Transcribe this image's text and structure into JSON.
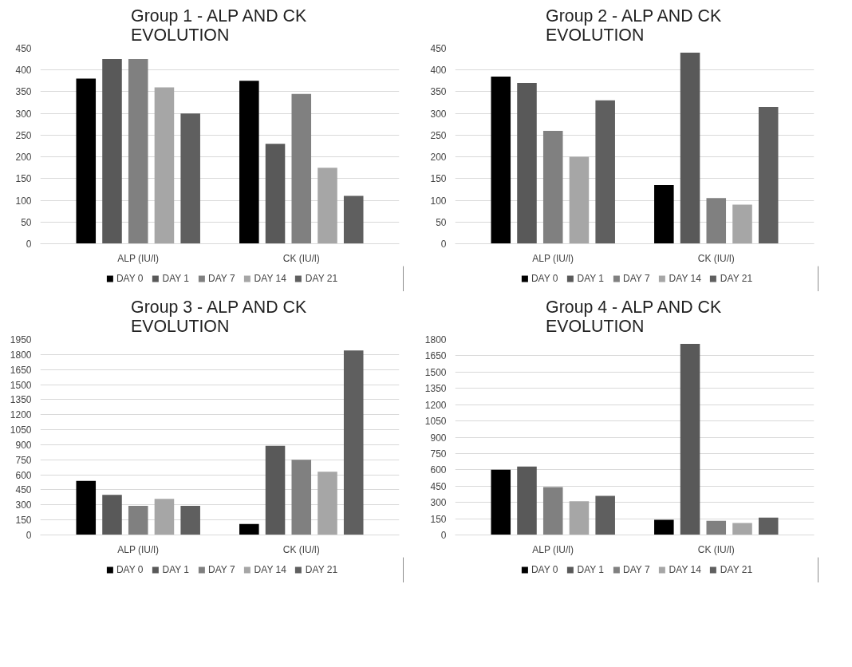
{
  "chart_data": [
    {
      "type": "bar",
      "title": "Group 1 - ALP AND CK EVOLUTION",
      "categories": [
        "ALP (IU/l)",
        "CK (IU/l)"
      ],
      "ylim": [
        0,
        450
      ],
      "yticks": [
        0,
        50,
        100,
        150,
        200,
        250,
        300,
        350,
        400,
        450
      ],
      "grid": "y",
      "legend": "bottom",
      "series": [
        {
          "name": "DAY 0",
          "color": "#000000",
          "values": [
            380,
            375
          ]
        },
        {
          "name": "DAY 1",
          "color": "#595959",
          "values": [
            425,
            230
          ]
        },
        {
          "name": "DAY 7",
          "color": "#808080",
          "values": [
            425,
            345
          ]
        },
        {
          "name": "DAY 14",
          "color": "#a6a6a6",
          "values": [
            360,
            175
          ]
        },
        {
          "name": "DAY 21",
          "color": "#5f5f5f",
          "values": [
            300,
            110
          ]
        }
      ]
    },
    {
      "type": "bar",
      "title": "Group 2 - ALP AND CK EVOLUTION",
      "categories": [
        "ALP (IU/l)",
        "CK (IU/l)"
      ],
      "ylim": [
        0,
        450
      ],
      "yticks": [
        0,
        50,
        100,
        150,
        200,
        250,
        300,
        350,
        400,
        450
      ],
      "grid": "y",
      "legend": "bottom",
      "series": [
        {
          "name": "DAY 0",
          "color": "#000000",
          "values": [
            385,
            135
          ]
        },
        {
          "name": "DAY 1",
          "color": "#595959",
          "values": [
            370,
            440
          ]
        },
        {
          "name": "DAY 7",
          "color": "#808080",
          "values": [
            260,
            105
          ]
        },
        {
          "name": "DAY 14",
          "color": "#a6a6a6",
          "values": [
            200,
            90
          ]
        },
        {
          "name": "DAY 21",
          "color": "#5f5f5f",
          "values": [
            330,
            315
          ]
        }
      ]
    },
    {
      "type": "bar",
      "title": "Group 3 - ALP AND CK EVOLUTION",
      "categories": [
        "ALP (IU/l)",
        "CK (IU/l)"
      ],
      "ylim": [
        0,
        1950
      ],
      "yticks": [
        0,
        150,
        300,
        450,
        600,
        750,
        900,
        1050,
        1200,
        1350,
        1500,
        1650,
        1800,
        1950
      ],
      "grid": "y",
      "legend": "bottom",
      "series": [
        {
          "name": "DAY 0",
          "color": "#000000",
          "values": [
            540,
            110
          ]
        },
        {
          "name": "DAY 1",
          "color": "#595959",
          "values": [
            400,
            890
          ]
        },
        {
          "name": "DAY 7",
          "color": "#808080",
          "values": [
            290,
            750
          ]
        },
        {
          "name": "DAY 14",
          "color": "#a6a6a6",
          "values": [
            360,
            630
          ]
        },
        {
          "name": "DAY 21",
          "color": "#5f5f5f",
          "values": [
            290,
            1840
          ]
        }
      ]
    },
    {
      "type": "bar",
      "title": "Group 4 - ALP AND CK EVOLUTION",
      "categories": [
        "ALP (IU/l)",
        "CK (IU/l)"
      ],
      "ylim": [
        0,
        1800
      ],
      "yticks": [
        0,
        150,
        300,
        450,
        600,
        750,
        900,
        1050,
        1200,
        1350,
        1500,
        1650,
        1800
      ],
      "grid": "y",
      "legend": "bottom",
      "series": [
        {
          "name": "DAY 0",
          "color": "#000000",
          "values": [
            600,
            140
          ]
        },
        {
          "name": "DAY 1",
          "color": "#595959",
          "values": [
            630,
            1760
          ]
        },
        {
          "name": "DAY 7",
          "color": "#808080",
          "values": [
            440,
            130
          ]
        },
        {
          "name": "DAY 14",
          "color": "#a6a6a6",
          "values": [
            310,
            110
          ]
        },
        {
          "name": "DAY 21",
          "color": "#5f5f5f",
          "values": [
            360,
            160
          ]
        }
      ]
    }
  ]
}
